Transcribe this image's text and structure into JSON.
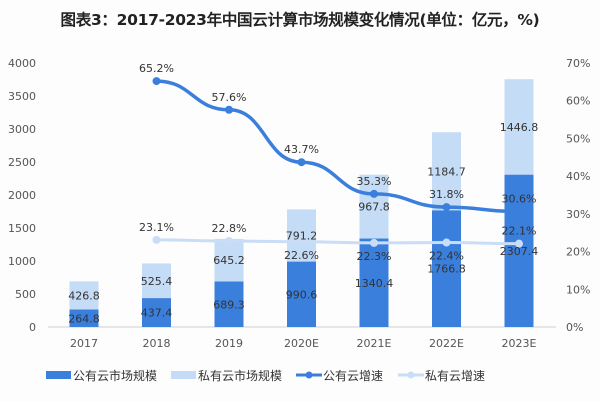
{
  "chart_data": {
    "type": "bar",
    "title": "图表3：2017-2023年中国云计算市场规模变化情况(单位：亿元，%)",
    "categories": [
      "2017",
      "2018",
      "2019",
      "2020E",
      "2021E",
      "2022E",
      "2023E"
    ],
    "stacked": true,
    "series": [
      {
        "name": "公有云市场规模",
        "type": "bar",
        "axis": "left",
        "color": "#3a7fdc",
        "values": [
          264.8,
          437.4,
          689.3,
          990.6,
          1340.4,
          1766.8,
          2307.4
        ]
      },
      {
        "name": "私有云市场规模",
        "type": "bar",
        "axis": "left",
        "color": "#c5dcf7",
        "values": [
          426.8,
          525.4,
          645.2,
          791.2,
          967.8,
          1184.7,
          1446.8
        ]
      },
      {
        "name": "公有云增速",
        "type": "line",
        "axis": "right",
        "unit": "%",
        "color": "#3a7fdc",
        "values": [
          null,
          65.2,
          57.6,
          43.7,
          35.3,
          31.8,
          30.6
        ]
      },
      {
        "name": "私有云增速",
        "type": "line",
        "axis": "right",
        "unit": "%",
        "color": "#c9def6",
        "values": [
          null,
          23.1,
          22.8,
          22.6,
          22.3,
          22.4,
          22.1
        ]
      }
    ],
    "y_left": {
      "range": [
        0,
        4000
      ],
      "ticks": [
        "0",
        "500",
        "1000",
        "1500",
        "2000",
        "2500",
        "3000",
        "3500",
        "4000"
      ]
    },
    "y_right": {
      "range": [
        0,
        70
      ],
      "ticks": [
        "0%",
        "10%",
        "20%",
        "30%",
        "40%",
        "50%",
        "60%",
        "70%"
      ]
    },
    "grid": false,
    "legend": "bottom"
  }
}
